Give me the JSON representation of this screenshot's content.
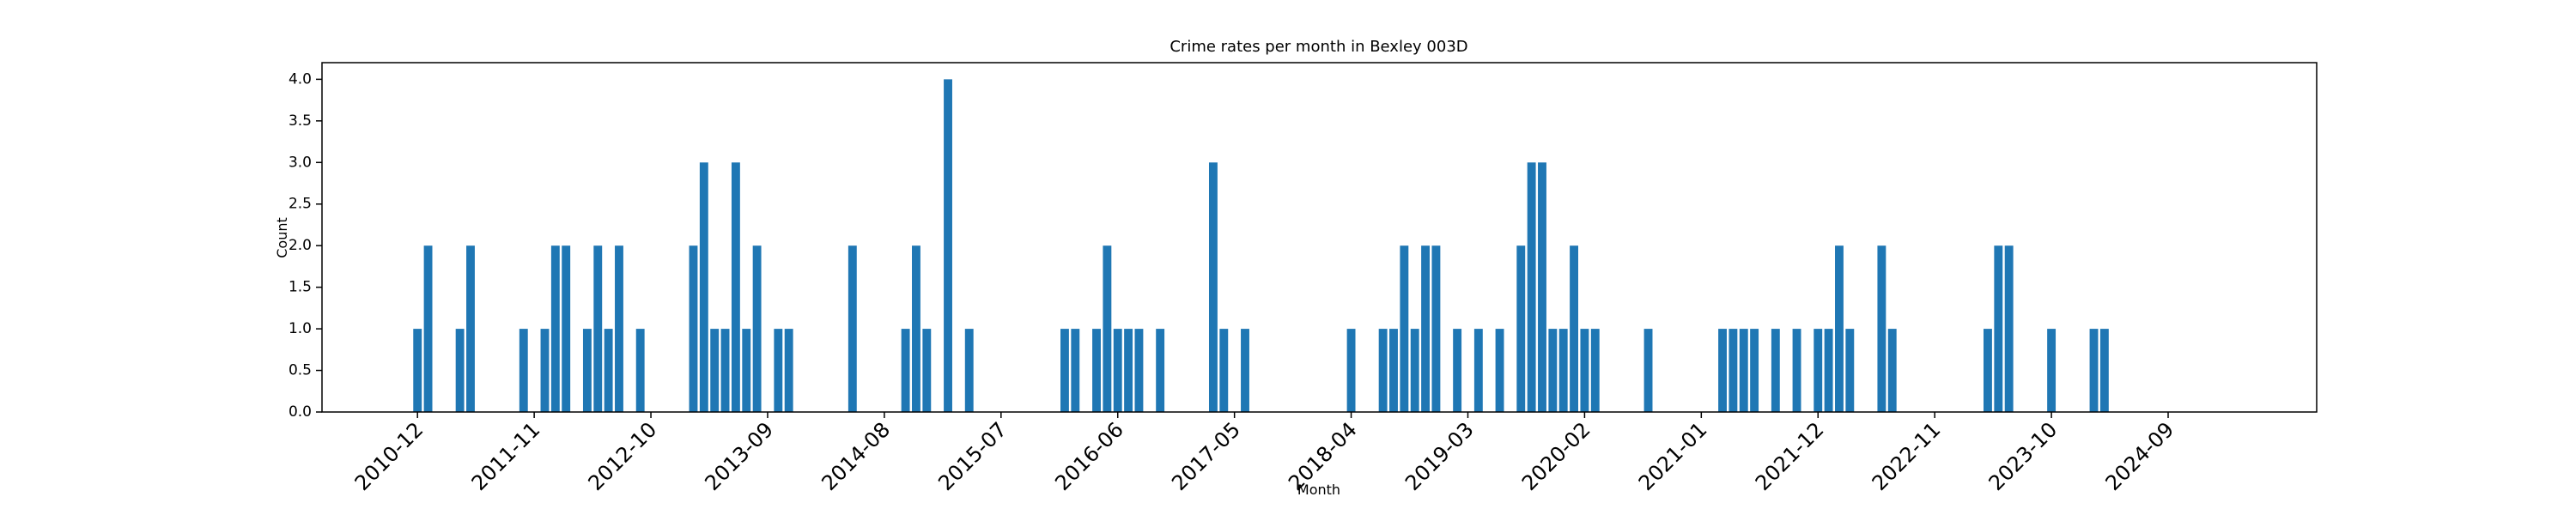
{
  "chart_data": {
    "type": "bar",
    "title": "Crime rates per month in Bexley 003D",
    "x_label": "Month",
    "y_label": "Count",
    "color": "#1f77b4",
    "x": [
      "2010-12",
      "2011-01",
      "2011-04",
      "2011-05",
      "2011-10",
      "2011-12",
      "2012-01",
      "2012-02",
      "2012-04",
      "2012-05",
      "2012-06",
      "2012-07",
      "2012-09",
      "2013-02",
      "2013-03",
      "2013-04",
      "2013-05",
      "2013-06",
      "2013-07",
      "2013-08",
      "2013-10",
      "2013-11",
      "2014-05",
      "2014-10",
      "2014-11",
      "2014-12",
      "2015-02",
      "2015-04",
      "2016-01",
      "2016-02",
      "2016-04",
      "2016-05",
      "2016-06",
      "2016-07",
      "2016-08",
      "2016-10",
      "2017-03",
      "2017-04",
      "2017-06",
      "2018-04",
      "2018-07",
      "2018-08",
      "2018-09",
      "2018-10",
      "2018-11",
      "2018-12",
      "2019-02",
      "2019-04",
      "2019-06",
      "2019-08",
      "2019-09",
      "2019-10",
      "2019-11",
      "2019-12",
      "2020-01",
      "2020-02",
      "2020-03",
      "2020-08",
      "2021-03",
      "2021-04",
      "2021-05",
      "2021-06",
      "2021-08",
      "2021-10",
      "2021-12",
      "2022-01",
      "2022-02",
      "2022-03",
      "2022-06",
      "2022-07",
      "2023-04",
      "2023-05",
      "2023-06",
      "2023-10",
      "2024-02",
      "2024-03"
    ],
    "values": [
      1,
      2,
      1,
      2,
      1,
      1,
      2,
      2,
      1,
      2,
      1,
      2,
      1,
      2,
      3,
      1,
      1,
      3,
      1,
      2,
      1,
      1,
      2,
      1,
      2,
      1,
      4,
      1,
      1,
      1,
      1,
      2,
      1,
      1,
      1,
      1,
      3,
      1,
      1,
      1,
      1,
      1,
      2,
      1,
      2,
      2,
      1,
      1,
      1,
      2,
      3,
      3,
      1,
      1,
      2,
      1,
      1,
      1,
      1,
      1,
      1,
      1,
      1,
      1,
      1,
      1,
      2,
      1,
      2,
      1,
      1,
      2,
      2,
      1,
      1,
      1
    ],
    "xlim": [
      "2010-03",
      "2025-11"
    ],
    "xticks": [
      "2010-12",
      "2011-11",
      "2012-10",
      "2013-09",
      "2014-08",
      "2015-07",
      "2016-06",
      "2017-05",
      "2018-04",
      "2019-03",
      "2020-02",
      "2021-01",
      "2021-12",
      "2022-11",
      "2023-10",
      "2024-09"
    ],
    "ylim": [
      0,
      4.2
    ],
    "yticks": [
      {
        "value": 0,
        "label": "0.0"
      },
      0.5,
      {
        "value": 1,
        "label": "1.0"
      },
      1.5,
      {
        "value": 2,
        "label": "2.0"
      },
      2.5,
      {
        "value": 3,
        "label": "3.0"
      },
      3.5,
      {
        "value": 4,
        "label": "4.0"
      }
    ]
  }
}
